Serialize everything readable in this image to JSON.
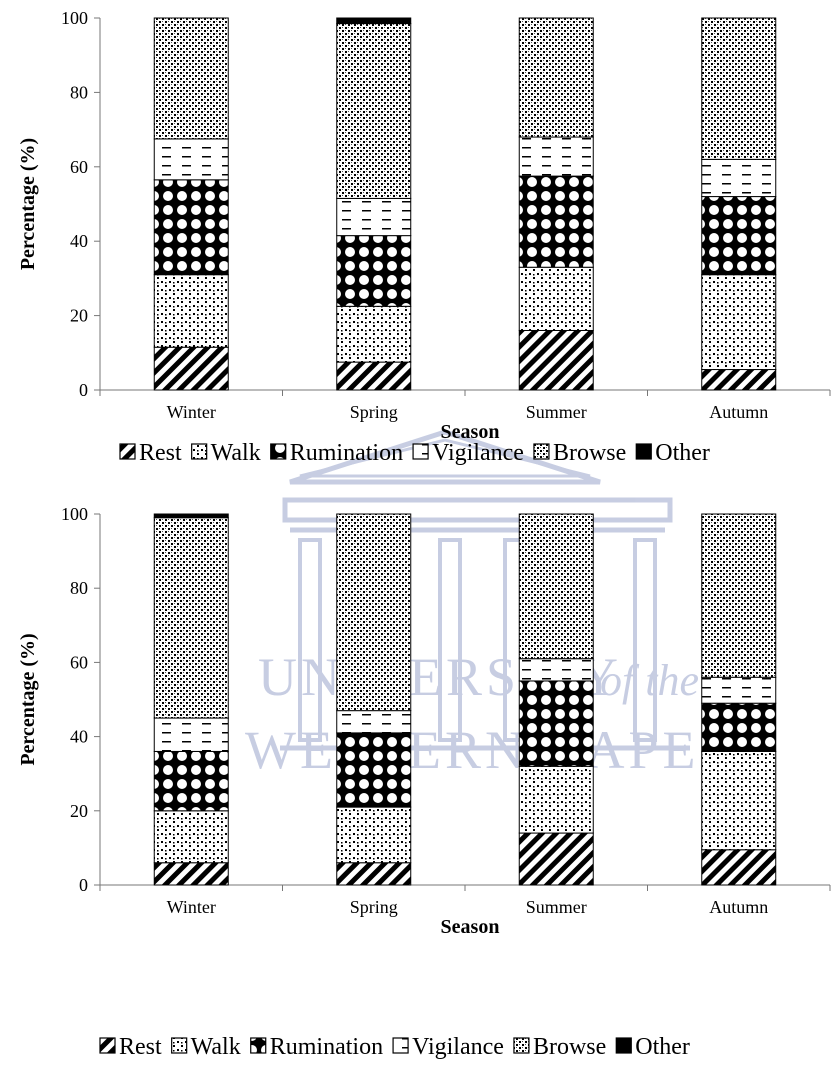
{
  "watermark": {
    "line1": "UNIVERSITY",
    "line1_suffix": "of the",
    "line2": "WESTERN CAPE",
    "color": "#9aa5cc"
  },
  "chart_data": [
    {
      "type": "bar",
      "stacked": true,
      "categories": [
        "Winter",
        "Spring",
        "Summer",
        "Autumn"
      ],
      "xlabel": "Season",
      "ylabel": "Percentage (%)",
      "ylim": [
        0,
        100
      ],
      "yticks": [
        0,
        20,
        40,
        60,
        80,
        100
      ],
      "legend_position": "bottom",
      "series": [
        {
          "name": "Rest",
          "pattern": "diagonal-stripes",
          "values": [
            11.5,
            7.5,
            16,
            5.5
          ]
        },
        {
          "name": "Walk",
          "pattern": "dots",
          "values": [
            19.5,
            15,
            17,
            25.5
          ]
        },
        {
          "name": "Rumination",
          "pattern": "diamond-checks",
          "values": [
            25.5,
            19,
            24.5,
            21
          ]
        },
        {
          "name": "Vigilance",
          "pattern": "dashes",
          "values": [
            11,
            10,
            10.5,
            10
          ]
        },
        {
          "name": "Browse",
          "pattern": "crosshatch",
          "values": [
            32.5,
            47,
            32,
            38
          ]
        },
        {
          "name": "Other",
          "pattern": "solid",
          "values": [
            0,
            1.5,
            0,
            0
          ]
        }
      ]
    },
    {
      "type": "bar",
      "stacked": true,
      "categories": [
        "Winter",
        "Spring",
        "Summer",
        "Autumn"
      ],
      "xlabel": "Season",
      "ylabel": "Percentage (%)",
      "ylim": [
        0,
        100
      ],
      "yticks": [
        0,
        20,
        40,
        60,
        80,
        100
      ],
      "legend_position": "bottom",
      "series": [
        {
          "name": "Rest",
          "pattern": "diagonal-stripes",
          "values": [
            6,
            6,
            14,
            9.5
          ]
        },
        {
          "name": "Walk",
          "pattern": "dots",
          "values": [
            14,
            15,
            18,
            26.5
          ]
        },
        {
          "name": "Rumination",
          "pattern": "diamond-checks",
          "values": [
            16,
            20,
            23,
            13
          ]
        },
        {
          "name": "Vigilance",
          "pattern": "dashes",
          "values": [
            9,
            6,
            6,
            7
          ]
        },
        {
          "name": "Browse",
          "pattern": "crosshatch",
          "values": [
            54,
            53,
            39,
            44
          ]
        },
        {
          "name": "Other",
          "pattern": "solid",
          "values": [
            1,
            0,
            0,
            0
          ]
        }
      ]
    }
  ]
}
